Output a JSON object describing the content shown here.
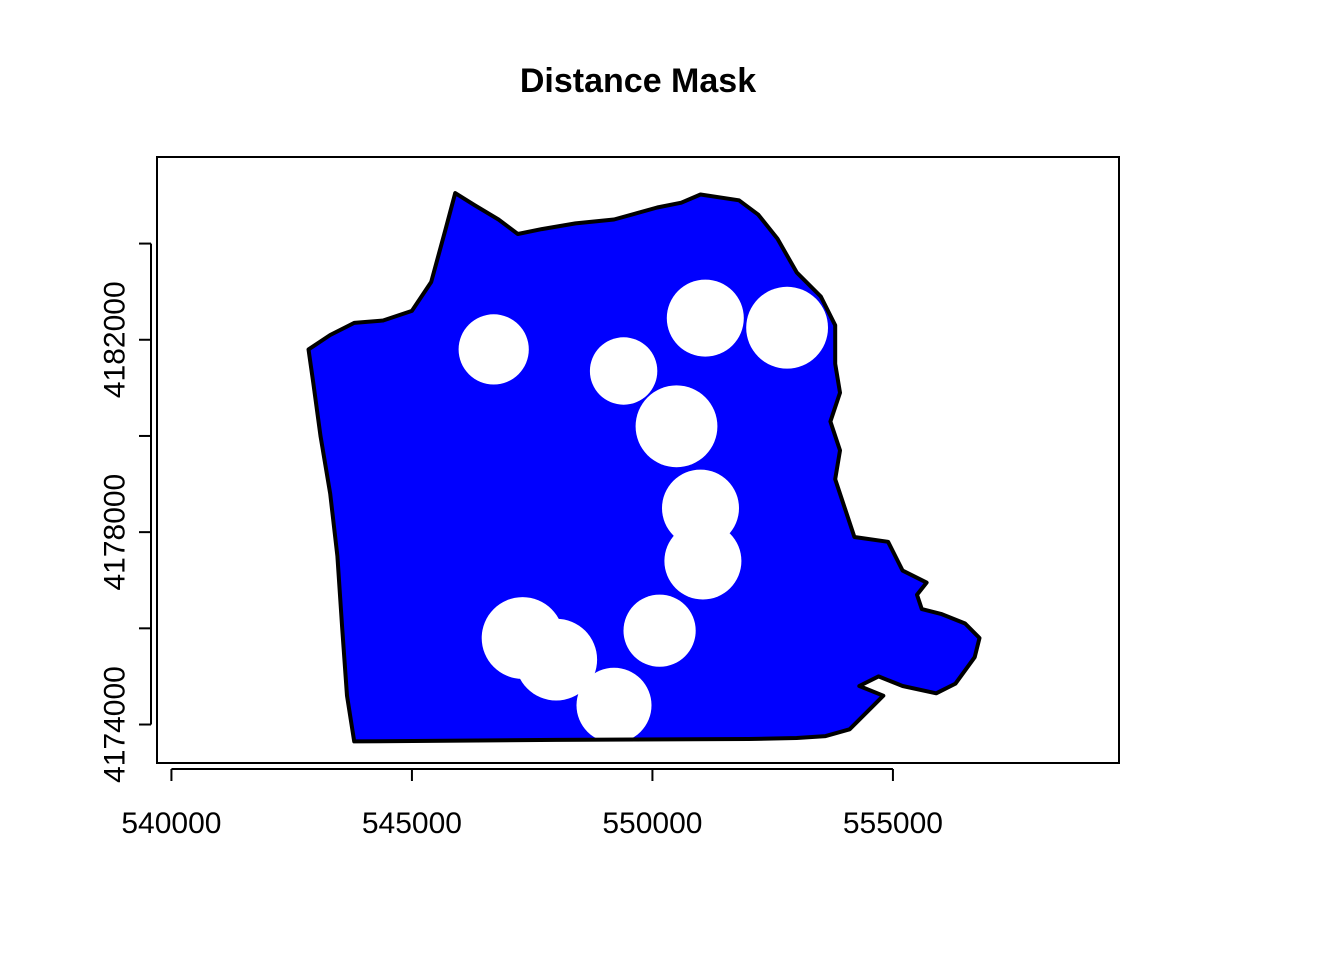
{
  "chart_data": {
    "type": "map",
    "title": "Distance Mask",
    "xlabel": "",
    "ylabel": "",
    "xlim": [
      539700,
      559700
    ],
    "ylim": [
      4173200,
      4185800
    ],
    "x_ticks": [
      540000,
      545000,
      550000,
      555000
    ],
    "y_ticks": [
      4174000,
      4176000,
      4178000,
      4180000,
      4182000,
      4184000
    ],
    "x_tick_labels": [
      "540000",
      "545000",
      "550000",
      "555000"
    ],
    "y_tick_labels": [
      "4174000",
      "4178000",
      "4182000"
    ],
    "y_labeled_ticks": [
      4174000,
      4178000,
      4182000
    ],
    "fill_color": "#0000ff",
    "mask_color": "#ffffff",
    "outline_color": "#000000",
    "boundary": [
      [
        543800,
        4173650
      ],
      [
        548000,
        4173680
      ],
      [
        552000,
        4173700
      ],
      [
        553000,
        4173720
      ],
      [
        553600,
        4173760
      ],
      [
        554100,
        4173900
      ],
      [
        554600,
        4174400
      ],
      [
        554800,
        4174600
      ],
      [
        554300,
        4174800
      ],
      [
        554700,
        4175000
      ],
      [
        555200,
        4174800
      ],
      [
        555900,
        4174650
      ],
      [
        556300,
        4174850
      ],
      [
        556700,
        4175400
      ],
      [
        556800,
        4175800
      ],
      [
        556500,
        4176100
      ],
      [
        556000,
        4176300
      ],
      [
        555600,
        4176400
      ],
      [
        555500,
        4176700
      ],
      [
        555700,
        4176950
      ],
      [
        555200,
        4177200
      ],
      [
        554900,
        4177800
      ],
      [
        554200,
        4177900
      ],
      [
        554000,
        4178500
      ],
      [
        553800,
        4179100
      ],
      [
        553900,
        4179700
      ],
      [
        553700,
        4180300
      ],
      [
        553900,
        4180900
      ],
      [
        553800,
        4181500
      ],
      [
        553800,
        4182300
      ],
      [
        553500,
        4182900
      ],
      [
        553000,
        4183400
      ],
      [
        552600,
        4184100
      ],
      [
        552200,
        4184600
      ],
      [
        551800,
        4184900
      ],
      [
        551000,
        4185020
      ],
      [
        550600,
        4184850
      ],
      [
        550100,
        4184750
      ],
      [
        549200,
        4184500
      ],
      [
        548400,
        4184420
      ],
      [
        547700,
        4184300
      ],
      [
        547200,
        4184200
      ],
      [
        546800,
        4184500
      ],
      [
        546300,
        4184800
      ],
      [
        545900,
        4185050
      ],
      [
        545700,
        4184300
      ],
      [
        545400,
        4183200
      ],
      [
        545000,
        4182600
      ],
      [
        544400,
        4182400
      ],
      [
        543800,
        4182350
      ],
      [
        543300,
        4182100
      ],
      [
        542850,
        4181800
      ],
      [
        542950,
        4181100
      ],
      [
        543100,
        4180000
      ],
      [
        543300,
        4178800
      ],
      [
        543450,
        4177500
      ],
      [
        543550,
        4176000
      ],
      [
        543650,
        4174600
      ],
      [
        543800,
        4173650
      ]
    ],
    "masked_zones": [
      {
        "x": 546700,
        "y": 4181800,
        "r": 730
      },
      {
        "x": 549400,
        "y": 4181350,
        "r": 700
      },
      {
        "x": 550500,
        "y": 4180200,
        "r": 850
      },
      {
        "x": 551100,
        "y": 4182450,
        "r": 800
      },
      {
        "x": 552800,
        "y": 4182250,
        "r": 850
      },
      {
        "x": 551000,
        "y": 4178500,
        "r": 800
      },
      {
        "x": 551050,
        "y": 4177400,
        "r": 800
      },
      {
        "x": 547300,
        "y": 4175800,
        "r": 850
      },
      {
        "x": 548000,
        "y": 4175350,
        "r": 850
      },
      {
        "x": 550150,
        "y": 4175950,
        "r": 750
      },
      {
        "x": 549200,
        "y": 4174400,
        "r": 780
      }
    ],
    "grid": false,
    "legend": "none"
  }
}
